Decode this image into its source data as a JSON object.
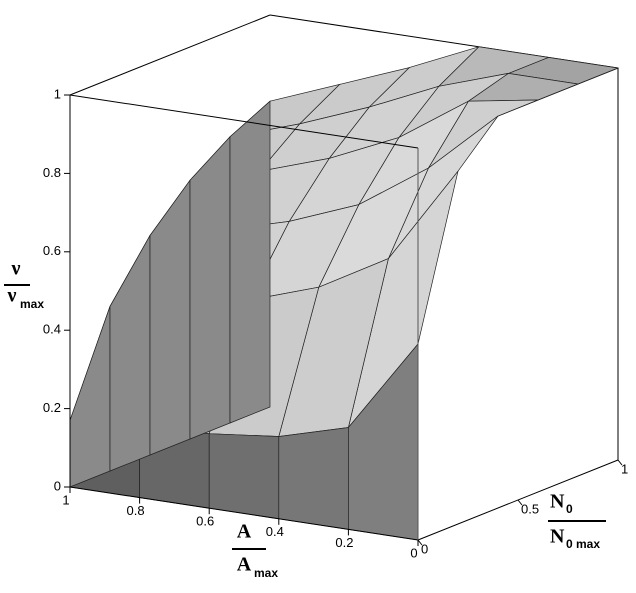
{
  "chart_data": {
    "type": "surface3d",
    "zlabel": {
      "numerator": "ν",
      "denominator": "ν",
      "denominator_sub": "max"
    },
    "xlabel": {
      "numerator": "A",
      "denominator": "A",
      "denominator_sub": "max"
    },
    "ylabel": {
      "numerator": "N",
      "numerator_sub": "0",
      "denominator": "N",
      "denominator_sub": "0 max"
    },
    "xlim": [
      0,
      1
    ],
    "ylim": [
      0,
      1
    ],
    "zlim": [
      0,
      1
    ],
    "xticks": [
      1,
      0.8,
      0.6,
      0.4,
      0.2,
      0
    ],
    "yticks": [
      0,
      0.5,
      1
    ],
    "zticks": [
      0,
      0.2,
      0.4,
      0.6,
      0.8,
      1
    ],
    "surface": {
      "x": [
        1,
        0.8,
        0.6,
        0.4,
        0.2,
        0
      ],
      "y": [
        0,
        0.2,
        0.4,
        0.6,
        0.8,
        1
      ],
      "z": [
        [
          0.17,
          0.42,
          0.56,
          0.66,
          0.73,
          0.78
        ],
        [
          0.18,
          0.45,
          0.6,
          0.71,
          0.79,
          0.85
        ],
        [
          0.19,
          0.49,
          0.65,
          0.77,
          0.86,
          0.92
        ],
        [
          0.21,
          0.55,
          0.72,
          0.85,
          0.94,
          1
        ],
        [
          0.26,
          0.65,
          0.84,
          0.97,
          1,
          1
        ],
        [
          0.5,
          0.9,
          1,
          1,
          1,
          1
        ]
      ]
    }
  }
}
